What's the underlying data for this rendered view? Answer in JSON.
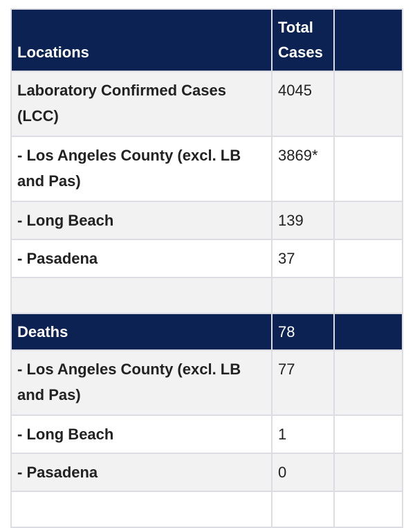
{
  "header": {
    "locations": "Locations",
    "total_cases": "Total Cases",
    "extra": ""
  },
  "cases_rows": [
    {
      "label": "Laboratory Confirmed Cases (LCC)",
      "value": "4045"
    },
    {
      "label": "- Los Angeles County (excl. LB and Pas)",
      "value": "3869*"
    },
    {
      "label": "- Long Beach",
      "value": "139"
    },
    {
      "label": "- Pasadena",
      "value": "37"
    }
  ],
  "deaths_header": {
    "label": "Deaths",
    "value": "78"
  },
  "deaths_rows": [
    {
      "label": "- Los Angeles County (excl. LB and Pas)",
      "value": "77"
    },
    {
      "label": "- Long Beach",
      "value": "1"
    },
    {
      "label": "- Pasadena",
      "value": "0"
    }
  ],
  "colors": {
    "header_bg": "#0b2253",
    "stripe": "#f2f2f2",
    "border": "#dcdde3"
  }
}
